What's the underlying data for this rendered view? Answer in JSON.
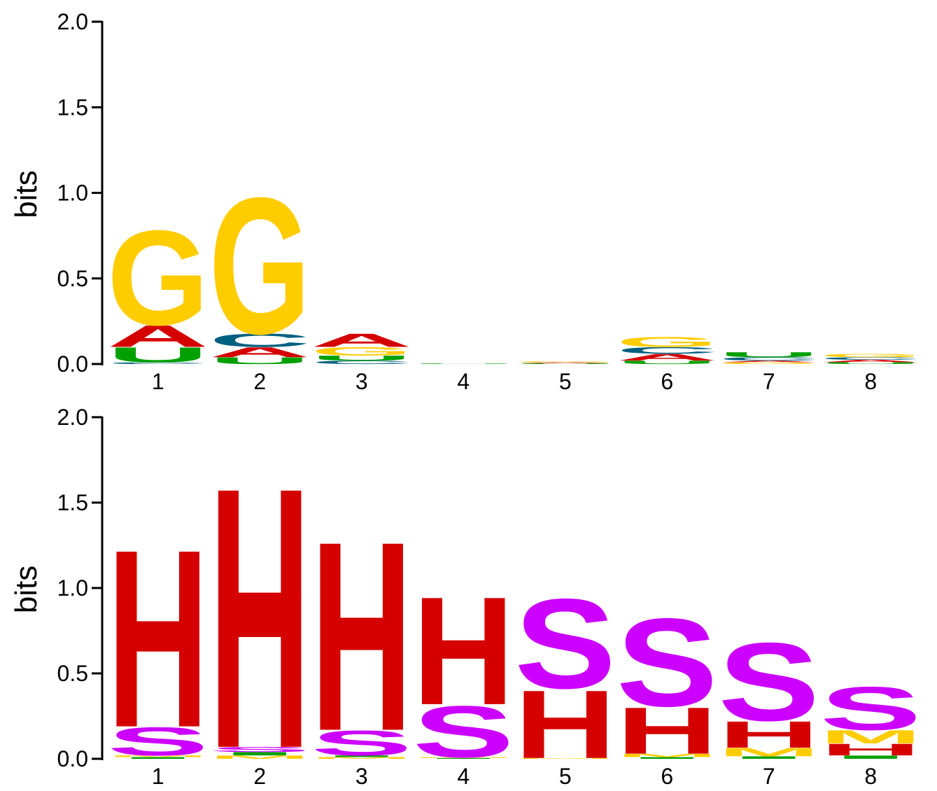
{
  "colors": {
    "A": "#d50000",
    "C": "#006080",
    "G": "#ffcc00",
    "U": "#00a000",
    "H": "#d50000",
    "S": "#cc00ff",
    "M": "#ffcc00",
    "I": "#00a000"
  },
  "chart_data": [
    {
      "type": "sequence-logo",
      "ylabel": "bits",
      "ylim": [
        0,
        2.0
      ],
      "yticks": [
        "0.0",
        "0.5",
        "1.0",
        "1.5",
        "2.0"
      ],
      "positions": [
        "1",
        "2",
        "3",
        "4",
        "5",
        "6",
        "7",
        "8"
      ],
      "stacks": [
        [
          {
            "l": "C",
            "v": 0.01
          },
          {
            "l": "U",
            "v": 0.09
          },
          {
            "l": "A",
            "v": 0.13
          },
          {
            "l": "G",
            "v": 0.57
          }
        ],
        [
          {
            "l": "U",
            "v": 0.04
          },
          {
            "l": "A",
            "v": 0.06
          },
          {
            "l": "C",
            "v": 0.08
          },
          {
            "l": "G",
            "v": 0.82
          }
        ],
        [
          {
            "l": "C",
            "v": 0.02
          },
          {
            "l": "U",
            "v": 0.03
          },
          {
            "l": "G",
            "v": 0.05
          },
          {
            "l": "A",
            "v": 0.08
          }
        ],
        [
          {
            "l": "U",
            "v": 0.003
          }
        ],
        [
          {
            "l": "U",
            "v": 0.005
          },
          {
            "l": "A",
            "v": 0.005
          },
          {
            "l": "G",
            "v": 0.006
          }
        ],
        [
          {
            "l": "U",
            "v": 0.02
          },
          {
            "l": "A",
            "v": 0.04
          },
          {
            "l": "C",
            "v": 0.04
          },
          {
            "l": "G",
            "v": 0.06
          }
        ],
        [
          {
            "l": "G",
            "v": 0.01
          },
          {
            "l": "A",
            "v": 0.01
          },
          {
            "l": "C",
            "v": 0.02
          },
          {
            "l": "U",
            "v": 0.03
          }
        ],
        [
          {
            "l": "U",
            "v": 0.01
          },
          {
            "l": "A",
            "v": 0.015
          },
          {
            "l": "C",
            "v": 0.015
          },
          {
            "l": "G",
            "v": 0.02
          }
        ]
      ]
    },
    {
      "type": "sequence-logo",
      "ylabel": "bits",
      "ylim": [
        0,
        2.0
      ],
      "yticks": [
        "0.0",
        "0.5",
        "1.0",
        "1.5",
        "2.0"
      ],
      "positions": [
        "1",
        "2",
        "3",
        "4",
        "5",
        "6",
        "7",
        "8"
      ],
      "stacks": [
        [
          {
            "l": "I",
            "v": 0.01
          },
          {
            "l": "M",
            "v": 0.01
          },
          {
            "l": "S",
            "v": 0.17
          },
          {
            "l": "H",
            "v": 1.07
          }
        ],
        [
          {
            "l": "M",
            "v": 0.02
          },
          {
            "l": "I",
            "v": 0.02
          },
          {
            "l": "S",
            "v": 0.03
          },
          {
            "l": "H",
            "v": 1.57
          }
        ],
        [
          {
            "l": "M",
            "v": 0.01
          },
          {
            "l": "I",
            "v": 0.01
          },
          {
            "l": "S",
            "v": 0.15
          },
          {
            "l": "H",
            "v": 1.14
          }
        ],
        [
          {
            "l": "I",
            "v": 0.005
          },
          {
            "l": "M",
            "v": 0.005
          },
          {
            "l": "S",
            "v": 0.31
          },
          {
            "l": "H",
            "v": 0.65
          }
        ],
        [
          {
            "l": "M",
            "v": 0.005
          },
          {
            "l": "H",
            "v": 0.41
          },
          {
            "l": "S",
            "v": 0.54
          }
        ],
        [
          {
            "l": "I",
            "v": 0.01
          },
          {
            "l": "M",
            "v": 0.02
          },
          {
            "l": "H",
            "v": 0.28
          },
          {
            "l": "S",
            "v": 0.53
          }
        ],
        [
          {
            "l": "I",
            "v": 0.015
          },
          {
            "l": "M",
            "v": 0.05
          },
          {
            "l": "H",
            "v": 0.16
          },
          {
            "l": "S",
            "v": 0.47
          }
        ],
        [
          {
            "l": "I",
            "v": 0.02
          },
          {
            "l": "H",
            "v": 0.07
          },
          {
            "l": "M",
            "v": 0.08
          },
          {
            "l": "S",
            "v": 0.26
          }
        ]
      ]
    }
  ]
}
